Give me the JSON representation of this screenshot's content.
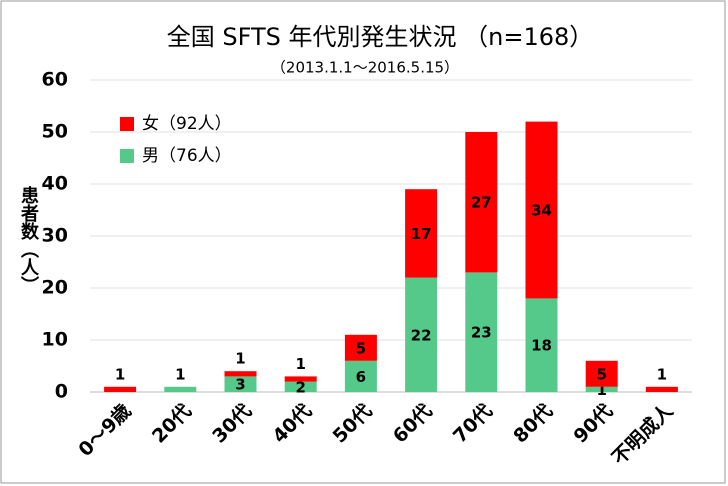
{
  "chart_data": {
    "type": "stacked_bar",
    "title": "全国 SFTS 年代別発生状況 （n=168）",
    "subtitle": "（2013.1.1〜2016.5.15）",
    "y_label": "患者数（人）",
    "categories": [
      "0〜9歳",
      "20代",
      "30代",
      "40代",
      "50代",
      "60代",
      "70代",
      "80代",
      "90代",
      "不明成人"
    ],
    "series": [
      {
        "name": "男（76人）",
        "color": "#55c98a",
        "values": [
          0,
          1,
          3,
          2,
          6,
          22,
          23,
          18,
          1,
          0
        ]
      },
      {
        "name": "女（92人）",
        "color": "#ff0000",
        "values": [
          1,
          0,
          1,
          1,
          5,
          17,
          27,
          34,
          5,
          1
        ]
      }
    ],
    "ylim": [
      0,
      60
    ],
    "yticks": [
      0,
      10,
      20,
      30,
      40,
      50,
      60
    ],
    "grid": true,
    "legend": "top-left"
  }
}
